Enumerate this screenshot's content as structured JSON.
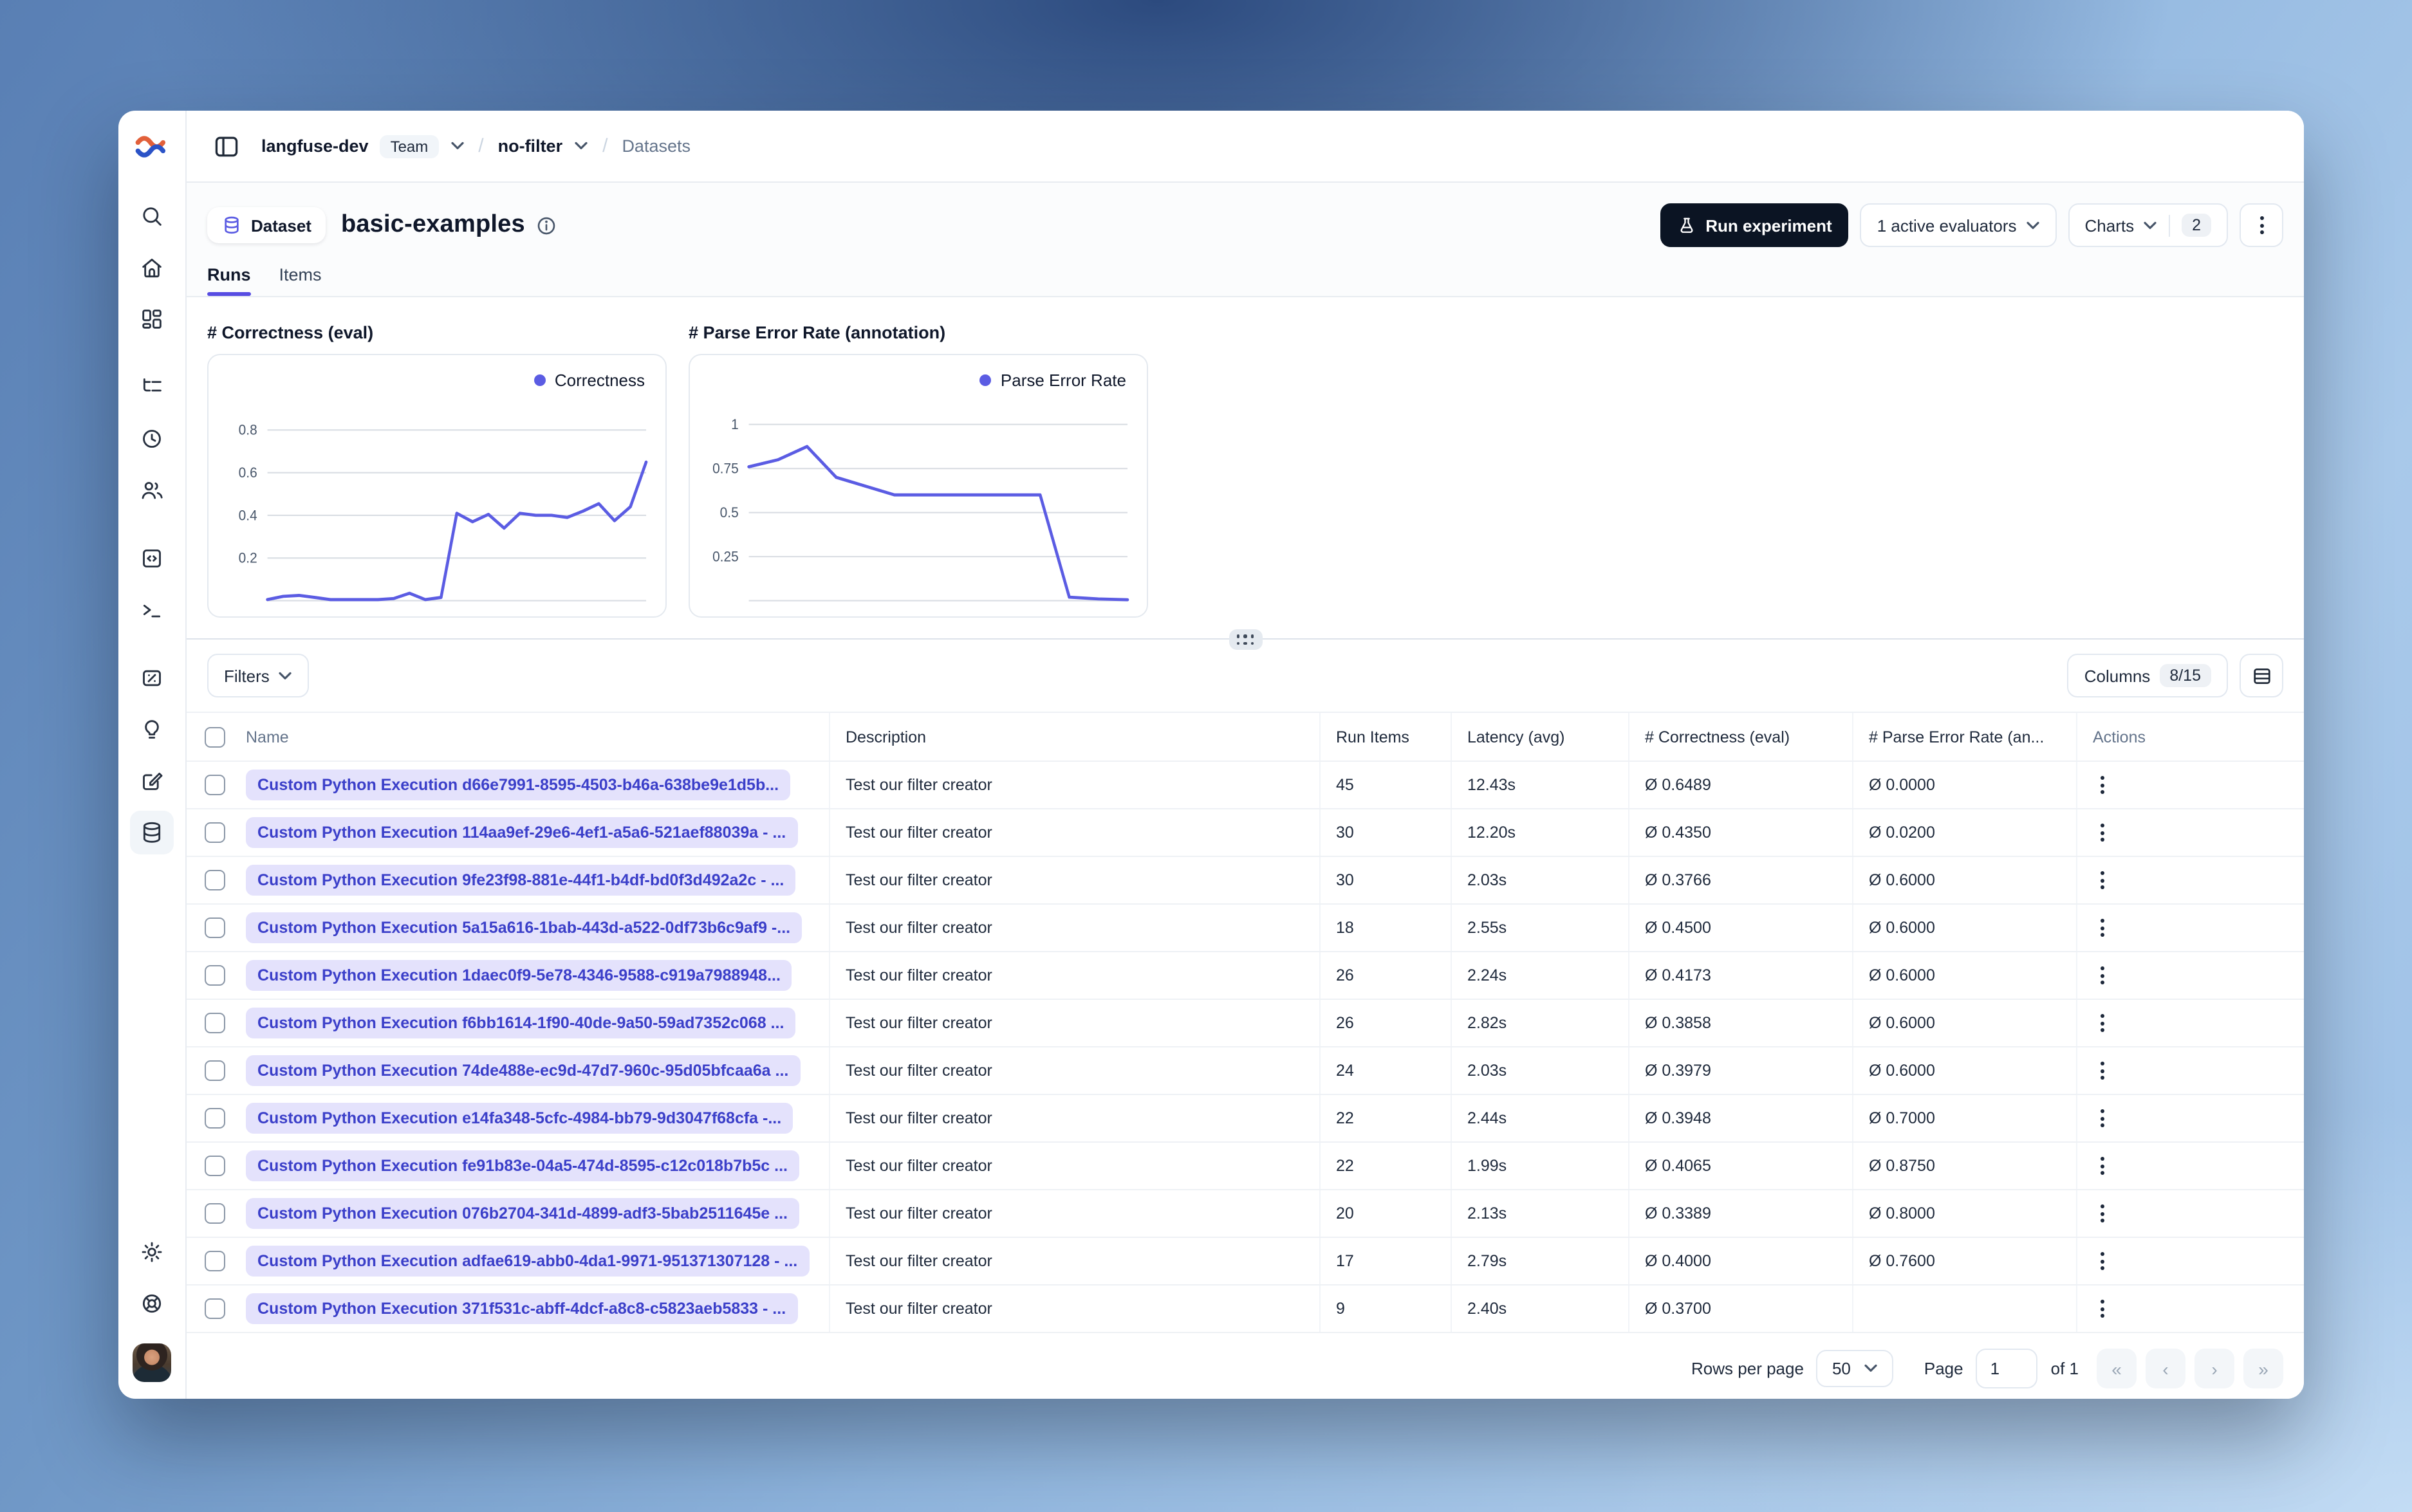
{
  "breadcrumb": {
    "org": "langfuse-dev",
    "org_badge": "Team",
    "project": "no-filter",
    "section": "Datasets"
  },
  "page_header": {
    "badge_label": "Dataset",
    "title": "basic-examples",
    "run_experiment_label": "Run experiment",
    "evaluators_label": "1 active evaluators",
    "charts_label": "Charts",
    "charts_count": "2"
  },
  "tabs": [
    {
      "label": "Runs",
      "active": true
    },
    {
      "label": "Items",
      "active": false
    }
  ],
  "chart_data": [
    {
      "type": "line",
      "title": "# Correctness (eval)",
      "legend": "Correctness",
      "series": [
        {
          "name": "Correctness",
          "values": [
            0.005,
            0.02,
            0.025,
            0.015,
            0.005,
            0.005,
            0.005,
            0.005,
            0.01,
            0.035,
            0.005,
            0.015,
            0.41,
            0.37,
            0.405,
            0.34,
            0.41,
            0.4,
            0.4,
            0.39,
            0.42,
            0.455,
            0.375,
            0.44,
            0.65
          ]
        }
      ],
      "yticks": [
        0.2,
        0.4,
        0.6,
        0.8
      ],
      "ylim": [
        0,
        0.95
      ],
      "xlabel": "",
      "ylabel": "",
      "grid": true,
      "legend_position": "top-right",
      "line_color": "#5b5ce3"
    },
    {
      "type": "line",
      "title": "# Parse Error Rate (annotation)",
      "legend": "Parse Error Rate",
      "series": [
        {
          "name": "Parse Error Rate",
          "values": [
            0.76,
            0.8,
            0.875,
            0.7,
            0.65,
            0.6,
            0.6,
            0.6,
            0.6,
            0.6,
            0.6,
            0.02,
            0.01,
            0.005
          ]
        }
      ],
      "yticks": [
        0.25,
        0.5,
        0.75,
        1
      ],
      "ylim": [
        0,
        1.15
      ],
      "xlabel": "",
      "ylabel": "",
      "grid": true,
      "legend_position": "top-right",
      "line_color": "#5b5ce3"
    }
  ],
  "toolbar": {
    "filters_label": "Filters",
    "columns_label": "Columns",
    "columns_count": "8/15"
  },
  "table": {
    "headers": [
      "Name",
      "Description",
      "Run Items",
      "Latency (avg)",
      "# Correctness (eval)",
      "# Parse Error Rate (an...",
      "Actions"
    ],
    "rows": [
      {
        "name": "Custom Python Execution d66e7991-8595-4503-b46a-638be9e1d5b...",
        "description": "Test our filter creator",
        "run_items": "45",
        "latency": "12.43s",
        "correctness": "Ø 0.6489",
        "parse_error": "Ø 0.0000"
      },
      {
        "name": "Custom Python Execution 114aa9ef-29e6-4ef1-a5a6-521aef88039a - ...",
        "description": "Test our filter creator",
        "run_items": "30",
        "latency": "12.20s",
        "correctness": "Ø 0.4350",
        "parse_error": "Ø 0.0200"
      },
      {
        "name": "Custom Python Execution 9fe23f98-881e-44f1-b4df-bd0f3d492a2c - ...",
        "description": "Test our filter creator",
        "run_items": "30",
        "latency": "2.03s",
        "correctness": "Ø 0.3766",
        "parse_error": "Ø 0.6000"
      },
      {
        "name": "Custom Python Execution 5a15a616-1bab-443d-a522-0df73b6c9af9 -...",
        "description": "Test our filter creator",
        "run_items": "18",
        "latency": "2.55s",
        "correctness": "Ø 0.4500",
        "parse_error": "Ø 0.6000"
      },
      {
        "name": "Custom Python Execution 1daec0f9-5e78-4346-9588-c919a7988948...",
        "description": "Test our filter creator",
        "run_items": "26",
        "latency": "2.24s",
        "correctness": "Ø 0.4173",
        "parse_error": "Ø 0.6000"
      },
      {
        "name": "Custom Python Execution f6bb1614-1f90-40de-9a50-59ad7352c068 ...",
        "description": "Test our filter creator",
        "run_items": "26",
        "latency": "2.82s",
        "correctness": "Ø 0.3858",
        "parse_error": "Ø 0.6000"
      },
      {
        "name": "Custom Python Execution 74de488e-ec9d-47d7-960c-95d05bfcaa6a ...",
        "description": "Test our filter creator",
        "run_items": "24",
        "latency": "2.03s",
        "correctness": "Ø 0.3979",
        "parse_error": "Ø 0.6000"
      },
      {
        "name": "Custom Python Execution e14fa348-5cfc-4984-bb79-9d3047f68cfa -...",
        "description": "Test our filter creator",
        "run_items": "22",
        "latency": "2.44s",
        "correctness": "Ø 0.3948",
        "parse_error": "Ø 0.7000"
      },
      {
        "name": "Custom Python Execution fe91b83e-04a5-474d-8595-c12c018b7b5c ...",
        "description": "Test our filter creator",
        "run_items": "22",
        "latency": "1.99s",
        "correctness": "Ø 0.4065",
        "parse_error": "Ø 0.8750"
      },
      {
        "name": "Custom Python Execution 076b2704-341d-4899-adf3-5bab2511645e ...",
        "description": "Test our filter creator",
        "run_items": "20",
        "latency": "2.13s",
        "correctness": "Ø 0.3389",
        "parse_error": "Ø 0.8000"
      },
      {
        "name": "Custom Python Execution adfae619-abb0-4da1-9971-951371307128 - ...",
        "description": "Test our filter creator",
        "run_items": "17",
        "latency": "2.79s",
        "correctness": "Ø 0.4000",
        "parse_error": "Ø 0.7600"
      },
      {
        "name": "Custom Python Execution 371f531c-abff-4dcf-a8c8-c5823aeb5833 - ...",
        "description": "Test our filter creator",
        "run_items": "9",
        "latency": "2.40s",
        "correctness": "Ø 0.3700",
        "parse_error": ""
      }
    ]
  },
  "footer": {
    "rows_per_page_label": "Rows per page",
    "rows_per_page_value": "50",
    "page_label": "Page",
    "page_value": "1",
    "of_label": "of 1",
    "pagination_icons": [
      "first-page",
      "previous-page",
      "next-page",
      "last-page"
    ]
  },
  "sidebar": {
    "items": [
      "langfuse-logo",
      "search",
      "home",
      "dashboards",
      "tracing",
      "sessions",
      "users",
      "prompts",
      "playground",
      "evaluation",
      "insights",
      "annotation",
      "datasets",
      "settings",
      "support",
      "account-avatar"
    ],
    "active_item": "datasets"
  },
  "colors": {
    "accent_indigo": "#5b5ce3",
    "tab_underline": "#574ce2",
    "dark_button": "#0b1423",
    "name_pill_bg": "#e4e2fc",
    "name_pill_text": "#3b3fc9"
  }
}
